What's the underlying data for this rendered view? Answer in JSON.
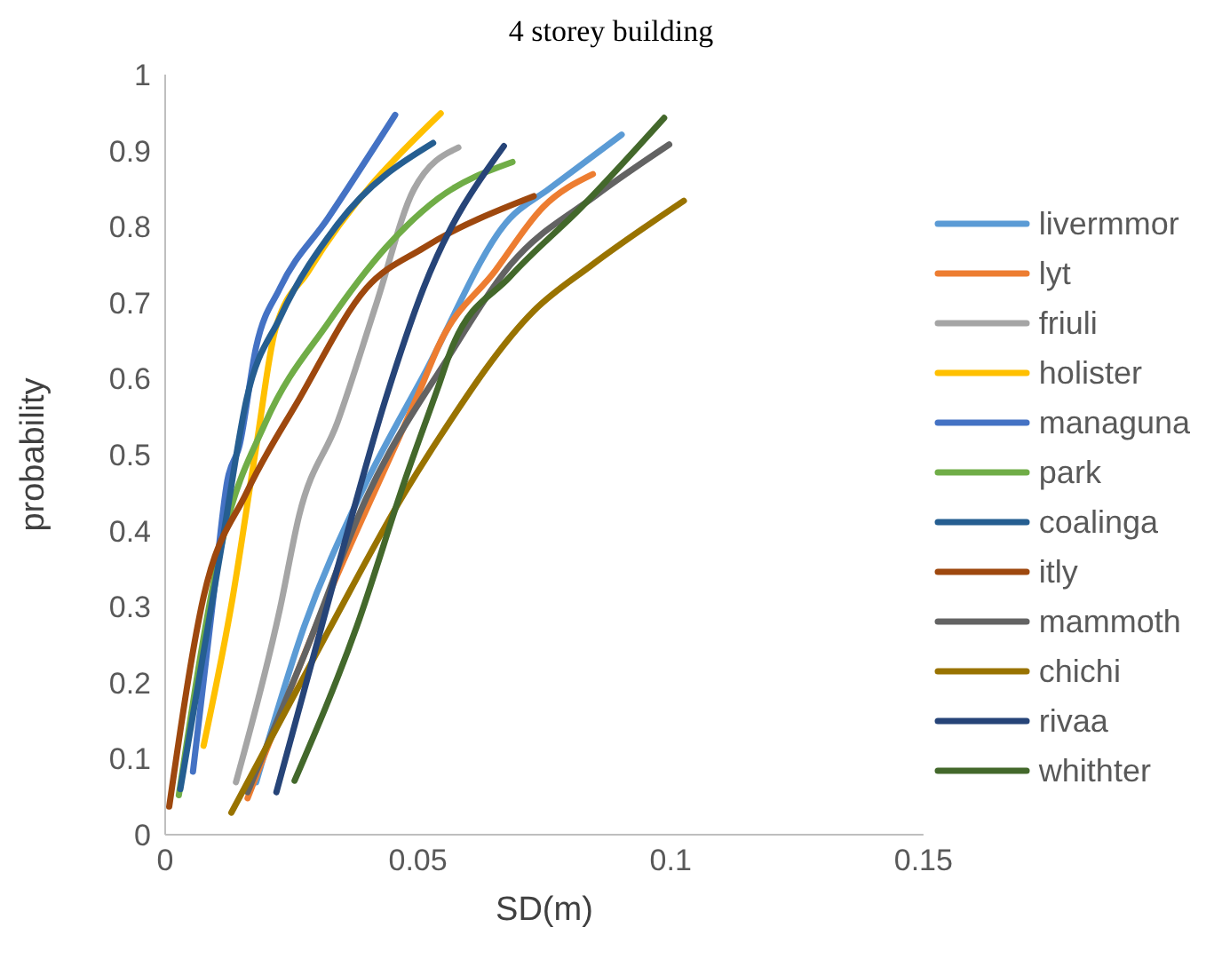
{
  "chart_data": {
    "type": "line",
    "title": "4 storey building",
    "xlabel": "SD(m)",
    "ylabel": "probability",
    "xlim": [
      0,
      0.15
    ],
    "xticks": [
      0,
      0.05,
      0.1,
      0.15
    ],
    "ylim": [
      0,
      1
    ],
    "yticks": [
      0,
      0.1,
      0.2,
      0.3,
      0.4,
      0.5,
      0.6,
      0.7,
      0.8,
      0.9,
      1
    ],
    "grid": false,
    "legend": "right",
    "marker": "none",
    "line_style": "solid",
    "series": [
      {
        "name": "livermmor",
        "color": "#5b9bd5",
        "x": [
          0.018,
          0.0275,
          0.0388,
          0.0511,
          0.0682,
          0.0758,
          0.0903
        ],
        "values": [
          0.069,
          0.274,
          0.45,
          0.604,
          0.811,
          0.849,
          0.921
        ]
      },
      {
        "name": "lyt",
        "color": "#ed7d31",
        "x": [
          0.0163,
          0.0322,
          0.0511,
          0.054,
          0.0653,
          0.0748,
          0.0846
        ],
        "values": [
          0.048,
          0.313,
          0.596,
          0.642,
          0.742,
          0.826,
          0.869
        ]
      },
      {
        "name": "friuli",
        "color": "#a5a5a5",
        "x": [
          0.014,
          0.0227,
          0.0265,
          0.0341,
          0.0417,
          0.0492,
          0.058
        ],
        "values": [
          0.069,
          0.297,
          0.42,
          0.543,
          0.697,
          0.849,
          0.904
        ]
      },
      {
        "name": "holister",
        "color": "#ffc000",
        "x": [
          0.0076,
          0.0133,
          0.018,
          0.0218,
          0.0284,
          0.0545
        ],
        "values": [
          0.117,
          0.31,
          0.51,
          0.665,
          0.742,
          0.949
        ]
      },
      {
        "name": "managuna",
        "color": "#4472c4",
        "x": [
          0.0055,
          0.0095,
          0.0123,
          0.0147,
          0.018,
          0.0227,
          0.0322,
          0.0455
        ],
        "values": [
          0.083,
          0.31,
          0.466,
          0.512,
          0.642,
          0.719,
          0.811,
          0.947
        ]
      },
      {
        "name": "park",
        "color": "#70ad47",
        "x": [
          0.0027,
          0.0114,
          0.0199,
          0.0322,
          0.0436,
          0.054,
          0.0687
        ],
        "values": [
          0.052,
          0.389,
          0.543,
          0.673,
          0.772,
          0.837,
          0.885
        ]
      },
      {
        "name": "coalinga",
        "color": "#255e91",
        "x": [
          0.003,
          0.0114,
          0.0161,
          0.0227,
          0.0341,
          0.053
        ],
        "values": [
          0.06,
          0.389,
          0.573,
          0.68,
          0.803,
          0.91
        ]
      },
      {
        "name": "itly",
        "color": "#9e480e",
        "x": [
          0.0008,
          0.0076,
          0.0161,
          0.0265,
          0.0398,
          0.0511,
          0.0729
        ],
        "values": [
          0.037,
          0.313,
          0.45,
          0.573,
          0.719,
          0.772,
          0.84
        ]
      },
      {
        "name": "mammoth",
        "color": "#636363",
        "x": [
          0.0163,
          0.0275,
          0.0398,
          0.0559,
          0.0682,
          0.0852,
          0.0997
        ],
        "values": [
          0.056,
          0.236,
          0.443,
          0.627,
          0.749,
          0.841,
          0.908
        ]
      },
      {
        "name": "chichi",
        "color": "#997300",
        "x": [
          0.0131,
          0.0322,
          0.0474,
          0.054,
          0.0729,
          0.0843,
          0.1026
        ],
        "values": [
          0.029,
          0.267,
          0.45,
          0.52,
          0.689,
          0.749,
          0.834
        ]
      },
      {
        "name": "rivaa",
        "color": "#264478",
        "x": [
          0.022,
          0.0341,
          0.0436,
          0.0511,
          0.067
        ],
        "values": [
          0.056,
          0.351,
          0.573,
          0.719,
          0.906
        ]
      },
      {
        "name": "whithter",
        "color": "#43682b",
        "x": [
          0.0256,
          0.0379,
          0.0474,
          0.054,
          0.0568,
          0.0682,
          0.0824,
          0.0987
        ],
        "values": [
          0.071,
          0.274,
          0.466,
          0.589,
          0.642,
          0.734,
          0.826,
          0.943
        ]
      }
    ]
  }
}
